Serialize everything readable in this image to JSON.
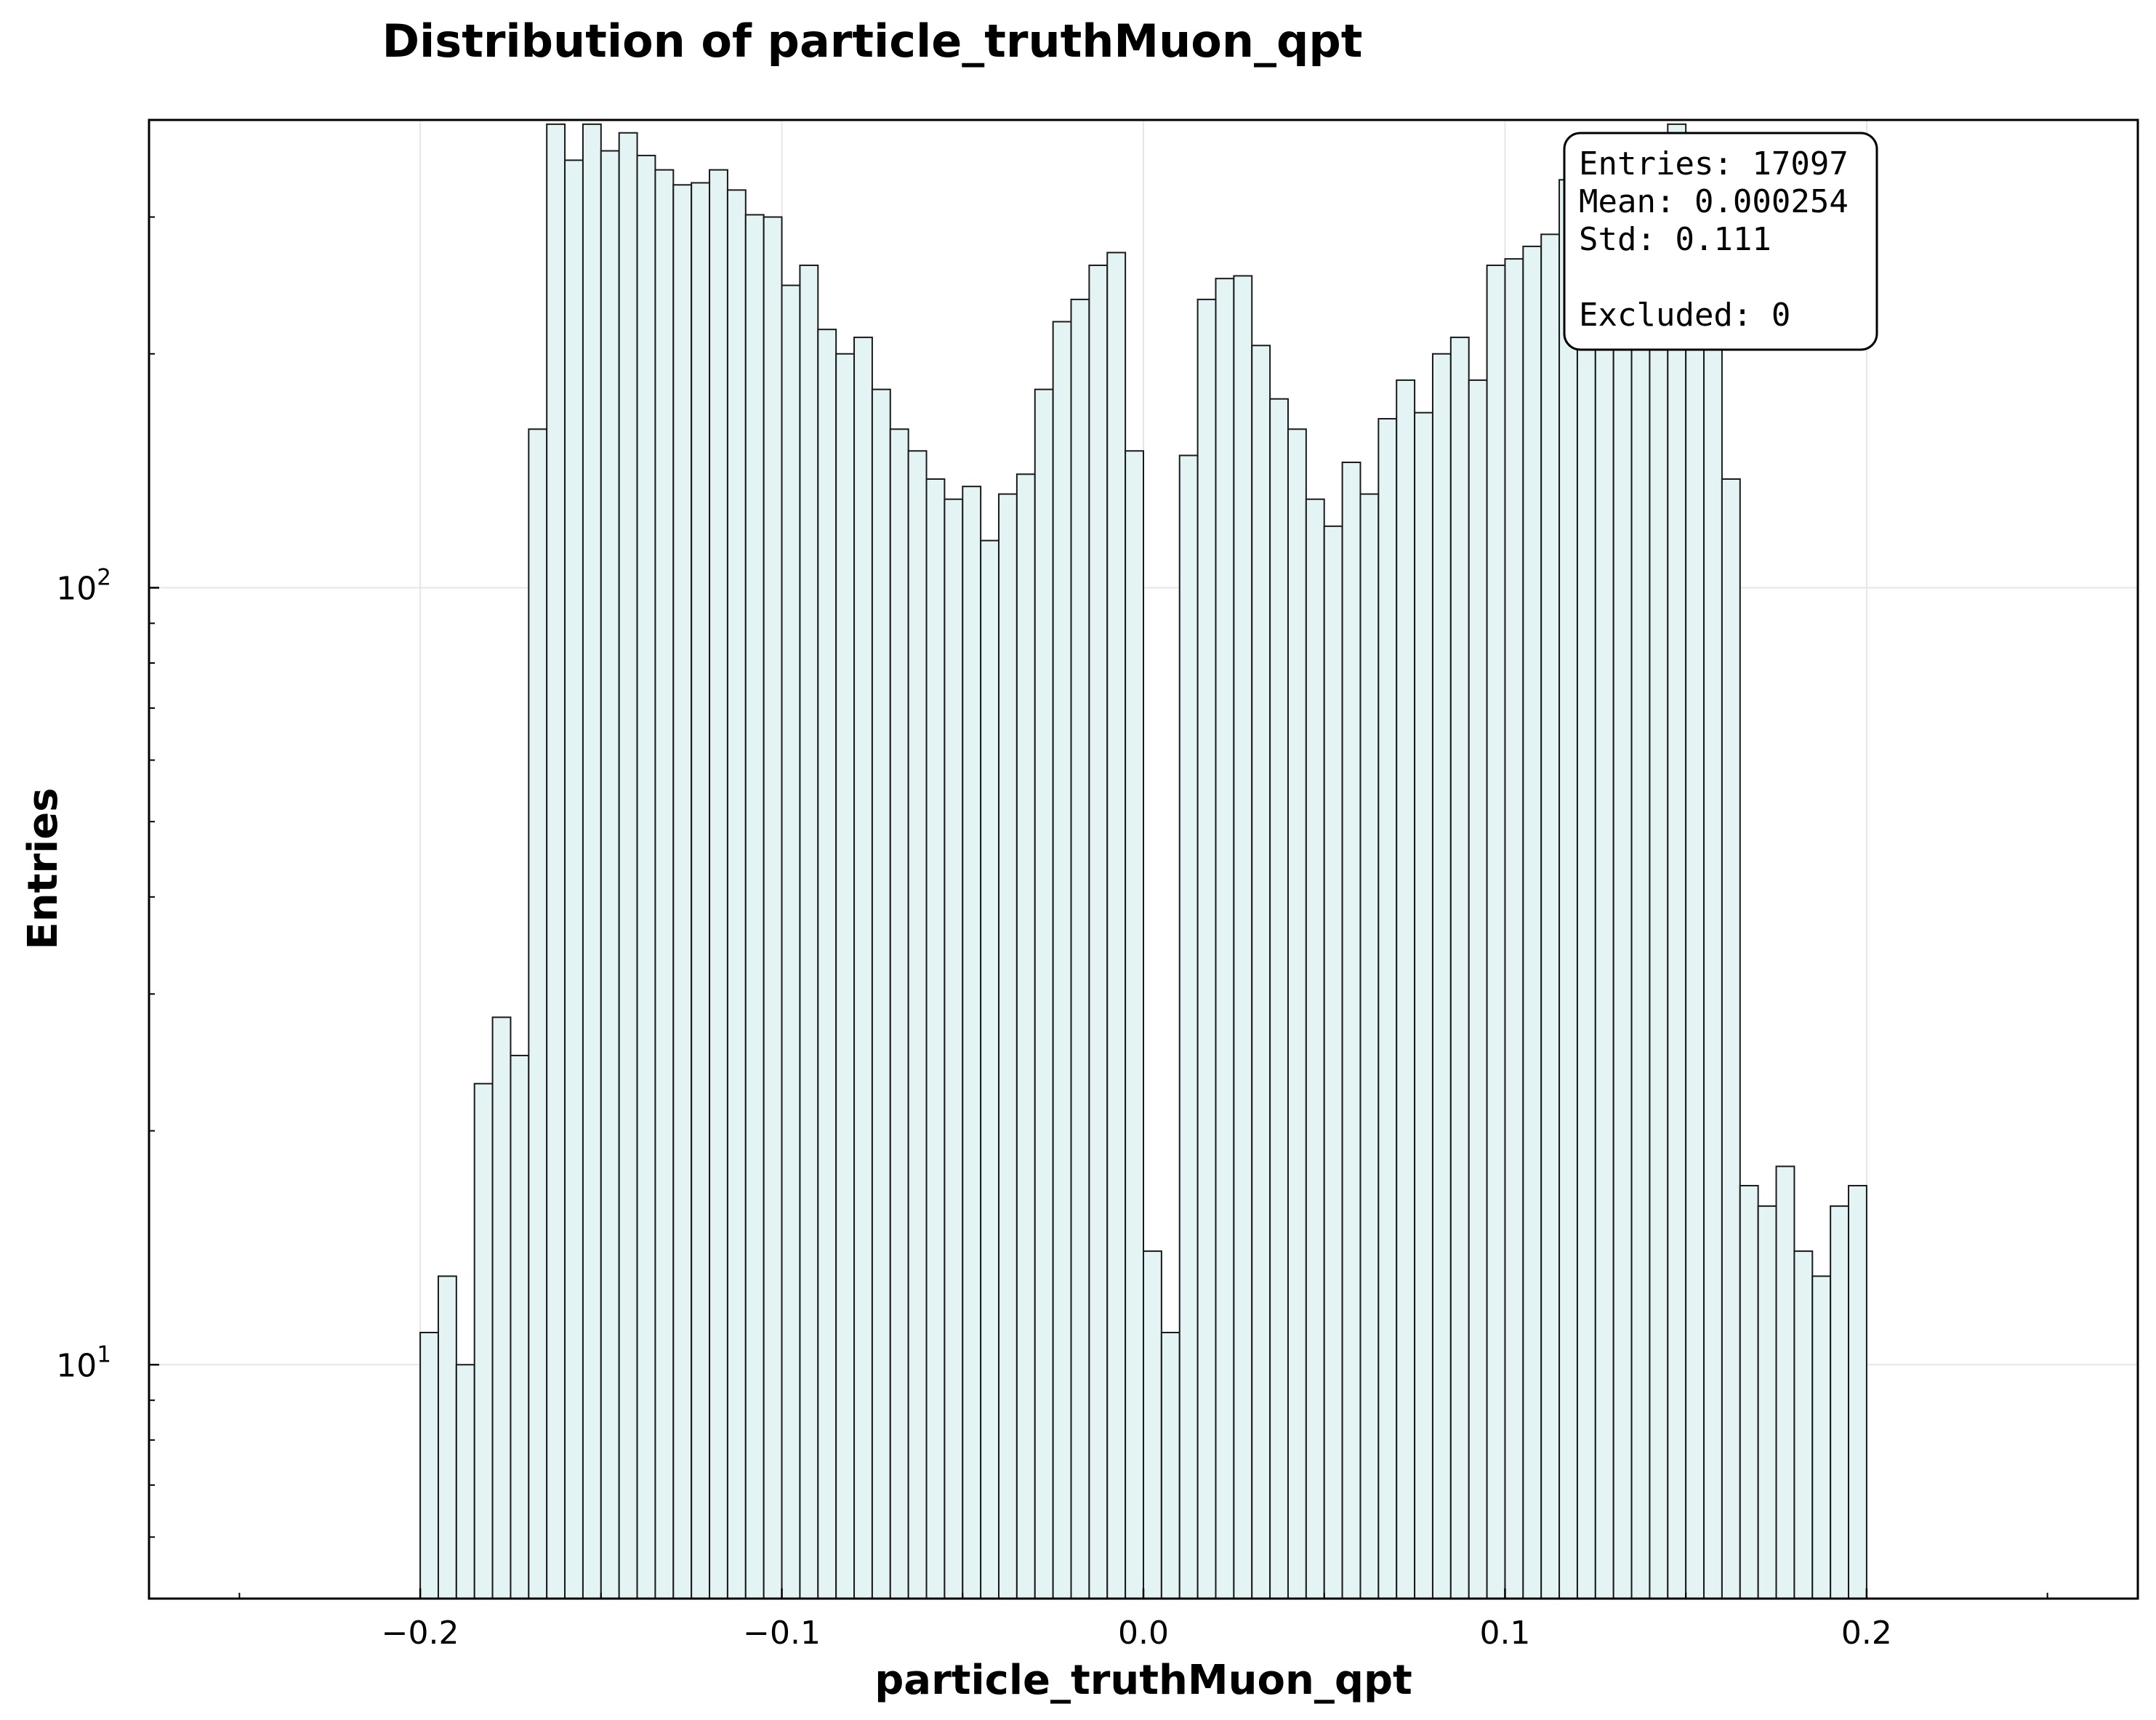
{
  "chart_data": {
    "type": "bar",
    "title": "Distribution of particle_truthMuon_qpt",
    "xlabel": "particle_truthMuon_qpt",
    "ylabel": "Entries",
    "xlim": [
      -0.275,
      0.275
    ],
    "ylim": [
      5,
      400
    ],
    "yscale": "log",
    "grid": true,
    "bin_edges": {
      "start": -0.2,
      "end": 0.2,
      "count": 80
    },
    "values": [
      11,
      13,
      10,
      23,
      28,
      25,
      160,
      395,
      355,
      395,
      365,
      385,
      360,
      345,
      330,
      332,
      345,
      325,
      302,
      300,
      245,
      260,
      215,
      200,
      210,
      180,
      160,
      150,
      138,
      130,
      135,
      115,
      132,
      140,
      180,
      220,
      235,
      260,
      270,
      150,
      14,
      11,
      148,
      235,
      250,
      252,
      205,
      175,
      160,
      130,
      120,
      145,
      132,
      165,
      185,
      168,
      200,
      210,
      185,
      260,
      265,
      275,
      285,
      335,
      320,
      330,
      345,
      350,
      380,
      395,
      330,
      340,
      138,
      17,
      16,
      18,
      14,
      13,
      16,
      17
    ],
    "xticks": [
      {
        "value": -0.2,
        "label": "−0.2"
      },
      {
        "value": -0.1,
        "label": "−0.1"
      },
      {
        "value": 0.0,
        "label": "0.0"
      },
      {
        "value": 0.1,
        "label": "0.1"
      },
      {
        "value": 0.2,
        "label": "0.2"
      }
    ],
    "yticks": [
      {
        "value": 10,
        "base": "10",
        "exp": "1"
      },
      {
        "value": 100,
        "base": "10",
        "exp": "2"
      }
    ],
    "stats_box": {
      "lines": [
        "Entries: 17097",
        "Mean: 0.000254",
        "Std: 0.111",
        "",
        "Excluded: 0"
      ],
      "placement": "top-right"
    },
    "colors": {
      "bar_fill": "#e4f4f4",
      "bar_edge": "#1a1a1a",
      "grid": "#e6e6e6"
    }
  }
}
